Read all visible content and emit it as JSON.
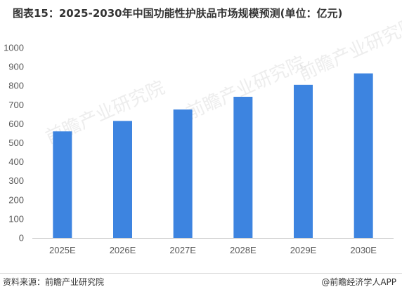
{
  "title": "图表15：2025-2030年中国功能性护肤品市场规模预测(单位：亿元)",
  "source": "资料来源：前瞻产业研究院",
  "brand": "@前瞻经济学人APP",
  "watermark": "前瞻产业研究院",
  "colors": {
    "bar": "#3d84e0",
    "axis": "#bfbfbf",
    "text": "#595959"
  },
  "chart_data": {
    "type": "bar",
    "title": "图表15：2025-2030年中国功能性护肤品市场规模预测(单位：亿元)",
    "categories": [
      "2025E",
      "2026E",
      "2027E",
      "2028E",
      "2029E",
      "2030E"
    ],
    "values": [
      560,
      615,
      675,
      742,
      805,
      865
    ],
    "xlabel": "",
    "ylabel": "",
    "ylim": [
      0,
      1000
    ],
    "yticks": [
      0,
      100,
      200,
      300,
      400,
      500,
      600,
      700,
      800,
      900,
      1000
    ],
    "grid": false,
    "legend": "none"
  }
}
